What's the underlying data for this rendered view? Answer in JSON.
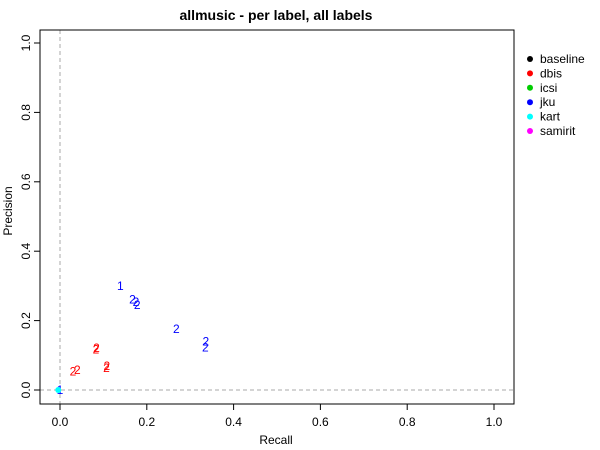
{
  "chart_data": {
    "type": "scatter",
    "title": "allmusic - per label, all labels",
    "xlabel": "Recall",
    "ylabel": "Precision",
    "xlim": [
      0,
      1
    ],
    "ylim": [
      0,
      1
    ],
    "x_ticks": [
      "0.0",
      "0.2",
      "0.4",
      "0.6",
      "0.8",
      "1.0"
    ],
    "y_ticks": [
      "0.0",
      "0.2",
      "0.4",
      "0.6",
      "0.8",
      "1.0"
    ],
    "grid": false,
    "reference_lines": {
      "x": 0,
      "y": 0,
      "style": "dashed",
      "color": "#aaaaaa"
    },
    "legend": {
      "position": "right",
      "entries": [
        {
          "name": "baseline",
          "color": "#000000"
        },
        {
          "name": "dbis",
          "color": "#ff0000"
        },
        {
          "name": "icsi",
          "color": "#00cd00"
        },
        {
          "name": "jku",
          "color": "#0000ff"
        },
        {
          "name": "kart",
          "color": "#00ffff"
        },
        {
          "name": "samirit",
          "color": "#ff00ff"
        }
      ]
    },
    "series": [
      {
        "name": "dbis",
        "color": "#ff0000",
        "points": [
          {
            "x": 0.03,
            "y": 0.053,
            "label": "2"
          },
          {
            "x": 0.04,
            "y": 0.057,
            "label": "2"
          },
          {
            "x": 0.083,
            "y": 0.116,
            "label": "2"
          },
          {
            "x": 0.084,
            "y": 0.121,
            "label": "2"
          },
          {
            "x": 0.107,
            "y": 0.064,
            "label": "2"
          },
          {
            "x": 0.108,
            "y": 0.069,
            "label": "2"
          }
        ]
      },
      {
        "name": "jku",
        "color": "#0000ff",
        "points": [
          {
            "x": 0.0,
            "y": 0.0,
            "label": "1"
          },
          {
            "x": 0.139,
            "y": 0.3,
            "label": "1"
          },
          {
            "x": 0.167,
            "y": 0.261,
            "label": "2"
          },
          {
            "x": 0.175,
            "y": 0.254,
            "label": "2"
          },
          {
            "x": 0.178,
            "y": 0.245,
            "label": "2"
          },
          {
            "x": 0.268,
            "y": 0.176,
            "label": "2"
          },
          {
            "x": 0.336,
            "y": 0.14,
            "label": "2"
          },
          {
            "x": 0.335,
            "y": 0.123,
            "label": "2"
          }
        ]
      },
      {
        "name": "kart",
        "color": "#00ffff",
        "points": [
          {
            "x": -0.004,
            "y": 0.0,
            "label": ""
          }
        ]
      }
    ]
  }
}
